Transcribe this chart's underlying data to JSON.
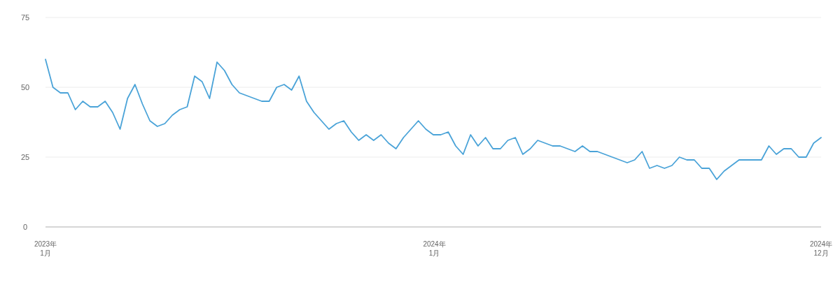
{
  "chart_data": {
    "type": "line",
    "grid": "y",
    "marker": "none",
    "line_style": "solid",
    "xlim": [
      "2023-01-01",
      "2024-12-29"
    ],
    "xticks": [
      {
        "value": "2023-01-01",
        "label": "2023年\n1月"
      },
      {
        "value": "2024-01-01",
        "label": "2024年\n1月"
      },
      {
        "value": "2024-12-29",
        "label": "2024年\n12月"
      }
    ],
    "ylim": [
      0,
      75
    ],
    "yticks": [
      0,
      25,
      50,
      75
    ],
    "x": [
      "2023-01-01",
      "2023-01-08",
      "2023-01-15",
      "2023-01-22",
      "2023-01-29",
      "2023-02-05",
      "2023-02-12",
      "2023-02-19",
      "2023-02-26",
      "2023-03-05",
      "2023-03-12",
      "2023-03-19",
      "2023-03-26",
      "2023-04-02",
      "2023-04-09",
      "2023-04-16",
      "2023-04-23",
      "2023-04-30",
      "2023-05-07",
      "2023-05-14",
      "2023-05-21",
      "2023-05-28",
      "2023-06-04",
      "2023-06-11",
      "2023-06-18",
      "2023-06-25",
      "2023-07-02",
      "2023-07-09",
      "2023-07-16",
      "2023-07-23",
      "2023-07-30",
      "2023-08-06",
      "2023-08-13",
      "2023-08-20",
      "2023-08-27",
      "2023-09-03",
      "2023-09-10",
      "2023-09-17",
      "2023-09-24",
      "2023-10-01",
      "2023-10-08",
      "2023-10-15",
      "2023-10-22",
      "2023-10-29",
      "2023-11-05",
      "2023-11-12",
      "2023-11-19",
      "2023-11-26",
      "2023-12-03",
      "2023-12-10",
      "2023-12-17",
      "2023-12-24",
      "2023-12-31",
      "2024-01-07",
      "2024-01-14",
      "2024-01-21",
      "2024-01-28",
      "2024-02-04",
      "2024-02-11",
      "2024-02-18",
      "2024-02-25",
      "2024-03-03",
      "2024-03-10",
      "2024-03-17",
      "2024-03-24",
      "2024-03-31",
      "2024-04-07",
      "2024-04-14",
      "2024-04-21",
      "2024-04-28",
      "2024-05-05",
      "2024-05-12",
      "2024-05-19",
      "2024-05-26",
      "2024-06-02",
      "2024-06-09",
      "2024-06-16",
      "2024-06-23",
      "2024-06-30",
      "2024-07-07",
      "2024-07-14",
      "2024-07-21",
      "2024-07-28",
      "2024-08-04",
      "2024-08-11",
      "2024-08-18",
      "2024-08-25",
      "2024-09-01",
      "2024-09-08",
      "2024-09-15",
      "2024-09-22",
      "2024-09-29",
      "2024-10-06",
      "2024-10-13",
      "2024-10-20",
      "2024-10-27",
      "2024-11-03",
      "2024-11-10",
      "2024-11-17",
      "2024-11-24",
      "2024-12-01",
      "2024-12-08",
      "2024-12-15",
      "2024-12-22",
      "2024-12-29"
    ],
    "series": [
      {
        "color": "#4aa3d8",
        "values": [
          60,
          50,
          48,
          48,
          42,
          45,
          43,
          43,
          45,
          41,
          35,
          46,
          51,
          44,
          38,
          36,
          37,
          40,
          42,
          43,
          54,
          52,
          46,
          59,
          56,
          51,
          48,
          47,
          46,
          45,
          45,
          50,
          51,
          49,
          54,
          45,
          41,
          38,
          35,
          37,
          38,
          34,
          31,
          33,
          31,
          33,
          30,
          28,
          32,
          35,
          38,
          35,
          33,
          33,
          34,
          29,
          26,
          33,
          29,
          32,
          28,
          28,
          31,
          32,
          26,
          28,
          31,
          30,
          29,
          29,
          28,
          27,
          29,
          27,
          27,
          26,
          25,
          24,
          23,
          24,
          27,
          21,
          22,
          21,
          22,
          25,
          24,
          24,
          21,
          21,
          17,
          20,
          22,
          24,
          24,
          24,
          24,
          29,
          26,
          28,
          28,
          25,
          25,
          30,
          32
        ]
      }
    ]
  }
}
